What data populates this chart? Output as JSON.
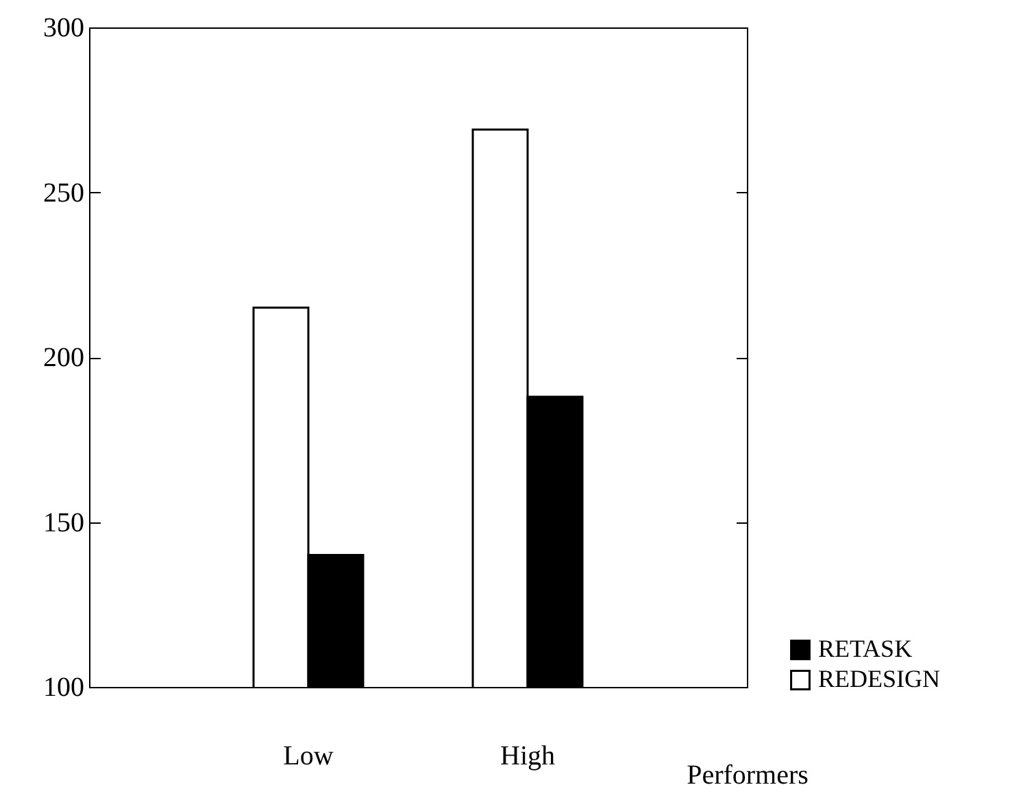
{
  "chart_data": {
    "type": "bar",
    "xlabel": "Performers",
    "categories": [
      "Low",
      "High"
    ],
    "series": [
      {
        "name": "REDESIGN",
        "color": "#ffffff",
        "values": [
          215,
          269
        ]
      },
      {
        "name": "RETASK",
        "color": "#000000",
        "values": [
          140,
          188
        ]
      }
    ],
    "ylim": [
      100,
      300
    ],
    "yticks": [
      100,
      150,
      200,
      250,
      300
    ],
    "grid": false,
    "legend": "bottom right"
  }
}
